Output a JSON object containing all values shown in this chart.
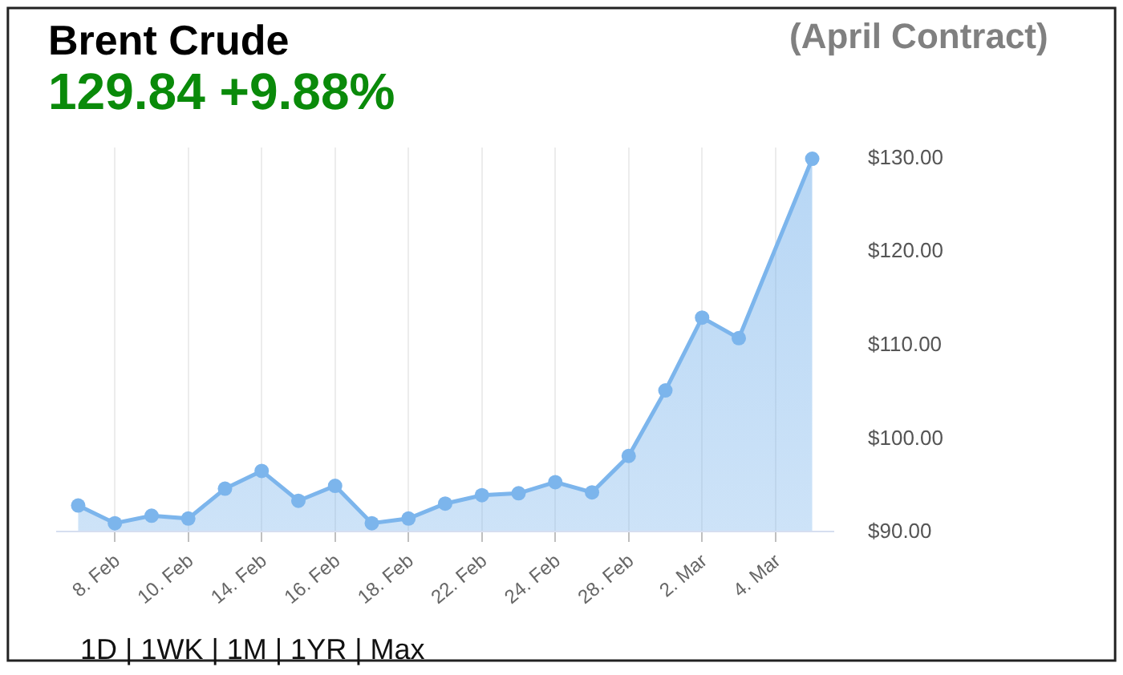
{
  "chart_data": {
    "type": "area",
    "title": "Brent Crude",
    "subtitle": "(April Contract)",
    "annotations": [
      "129.84 +9.88%",
      "1D | 1WK | 1M | 1YR | Max"
    ],
    "categories": [
      null,
      "8. Feb",
      null,
      "10. Feb",
      null,
      "14. Feb",
      null,
      "16. Feb",
      null,
      "18. Feb",
      null,
      "22. Feb",
      null,
      "24. Feb",
      null,
      "28. Feb",
      null,
      "2. Mar",
      null,
      "4. Mar",
      null
    ],
    "series": [
      {
        "color": "#7cb5ec",
        "values": [
          92.7,
          90.8,
          91.6,
          91.3,
          94.5,
          96.4,
          93.2,
          94.8,
          90.8,
          91.3,
          92.9,
          93.8,
          94.0,
          95.2,
          94.1,
          98.0,
          105.0,
          112.8,
          110.6,
          null,
          129.8
        ]
      }
    ],
    "ylim": [
      90,
      131
    ],
    "yticks": [
      {
        "value": 90,
        "label": "$90.00"
      },
      {
        "value": 100,
        "label": "$100.00"
      },
      {
        "value": 110,
        "label": "$110.00"
      },
      {
        "value": 120,
        "label": "$120.00"
      },
      {
        "value": 130,
        "label": "$130.00"
      }
    ],
    "grid": "x",
    "marker": "circle",
    "line_style": "solid"
  }
}
